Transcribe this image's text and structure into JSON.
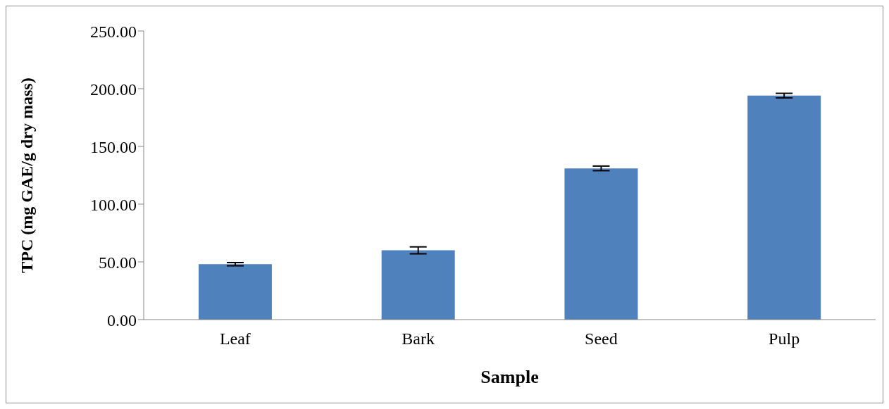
{
  "chart_data": {
    "type": "bar",
    "xlabel": "Sample",
    "ylabel": "TPC (mg GAE/g dry mass)",
    "categories": [
      "Leaf",
      "Bark",
      "Seed",
      "Pulp"
    ],
    "values": [
      48,
      60,
      131,
      194
    ],
    "errors": [
      1.4,
      3,
      2,
      2
    ],
    "color": "#4f81bd",
    "ylim": [
      0,
      250
    ],
    "yticks": [
      {
        "value": 0,
        "label": "0.00"
      },
      {
        "value": 50,
        "label": "50.00"
      },
      {
        "value": 100,
        "label": "100.00"
      },
      {
        "value": 150,
        "label": "150.00"
      },
      {
        "value": 200,
        "label": "200.00"
      },
      {
        "value": 250,
        "label": "250.00"
      }
    ],
    "grid": false,
    "legend": false
  }
}
